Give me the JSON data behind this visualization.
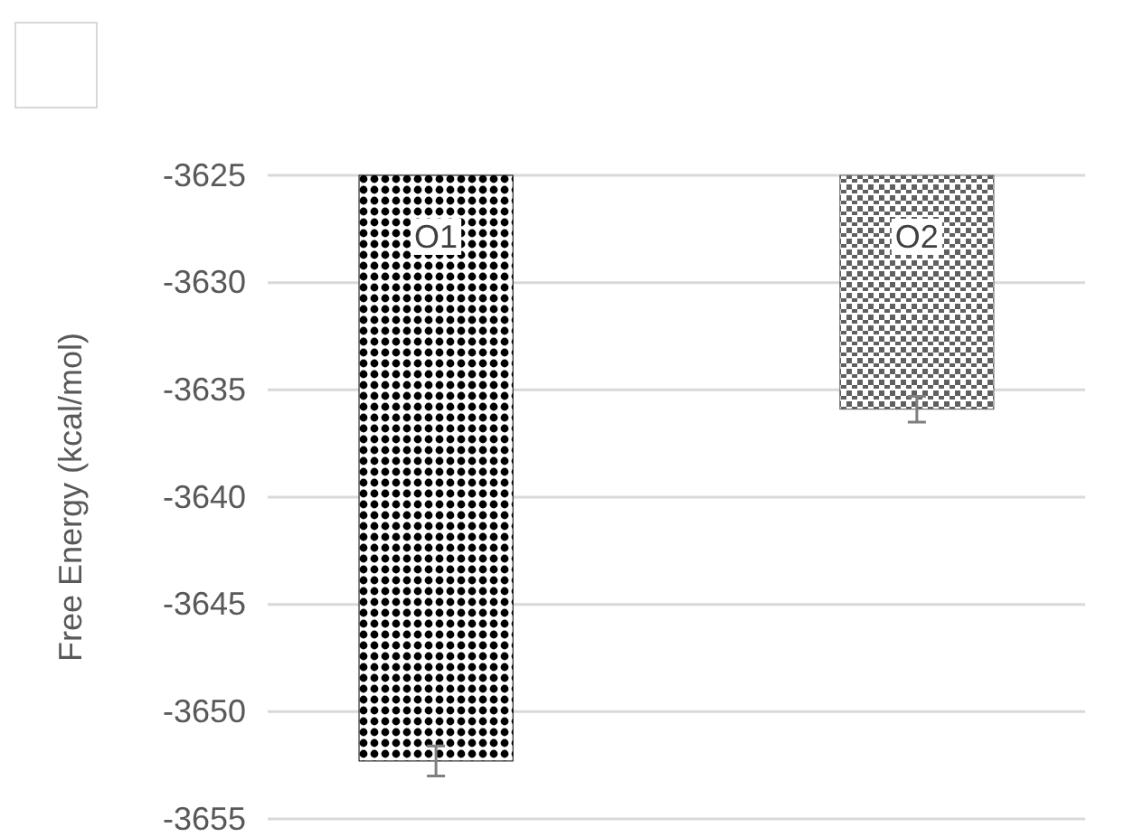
{
  "chart_data": {
    "type": "bar",
    "ylabel": "Free Energy (kcal/mol)",
    "categories": [
      "O1",
      "O2"
    ],
    "series": [
      {
        "colors": [
          "#000000",
          "#606060"
        ],
        "values": [
          -3652.3,
          -3635.9
        ],
        "errors": [
          0.7,
          0.6
        ]
      }
    ],
    "ylim": [
      -3655,
      -3625
    ],
    "yticks": [
      -3655,
      -3650,
      -3645,
      -3640,
      -3635,
      -3630,
      -3625
    ],
    "grid": "y",
    "tick_labels": "y"
  }
}
